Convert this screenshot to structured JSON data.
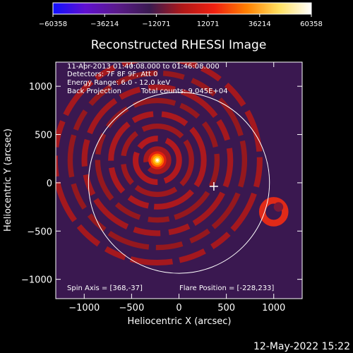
{
  "chart_data": {
    "type": "heatmap",
    "title": "Reconstructed RHESSI Image",
    "xlabel": "Heliocentric X (arcsec)",
    "ylabel": "Heliocentric Y (arcsec)",
    "xlim": [
      -1300,
      1300
    ],
    "ylim": [
      -1200,
      1250
    ],
    "xticks": [
      -1000,
      -500,
      0,
      500,
      1000
    ],
    "yticks": [
      -1000,
      -500,
      0,
      500,
      1000
    ],
    "xtick_labels": [
      "−1000",
      "−500",
      "0",
      "500",
      "1000"
    ],
    "ytick_labels": [
      "−1000",
      "−500",
      "0",
      "500",
      "1000"
    ],
    "colorbar": {
      "min": -60358,
      "max": 60358,
      "ticks": [
        -60358,
        -36214,
        -12071,
        12071,
        36214,
        60358
      ],
      "tick_labels": [
        "−60358",
        "−36214",
        "−12071",
        "12071",
        "36214",
        "60358"
      ],
      "colors": [
        "#1010ff",
        "#6010d0",
        "#5a1a8a",
        "#3a1a50",
        "#b01818",
        "#f02010",
        "#ff8000",
        "#ffe060",
        "#ffffff"
      ]
    },
    "annotations": {
      "time_range": "11-Apr-2013 01:40:08.000 to 01:46:08.000",
      "detectors": "Detectors: 7F 8F 9F, Att 0",
      "energy_range": "Energy Range: 6.0 - 12.0 keV",
      "method": "Back Projection",
      "total_counts": "Total counts: 9.045E+04",
      "spin_axis": "Spin Axis = [368,-37]",
      "flare_position": "Flare Position = [-228,233]"
    },
    "solar_limb_radius": 955,
    "source": {
      "x": -228,
      "y": 233
    },
    "marker": {
      "x": 368,
      "y": -37
    },
    "footer_date": "12-May-2022 15:22"
  }
}
